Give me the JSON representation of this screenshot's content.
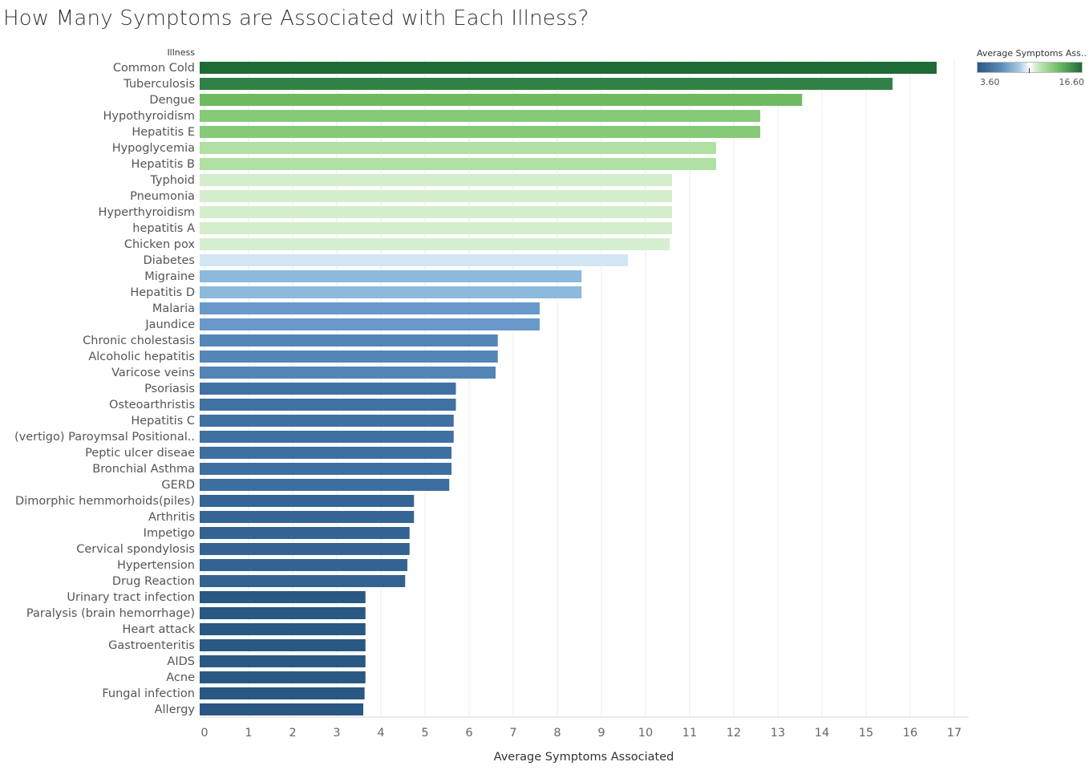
{
  "title": "How Many Symptoms are Associated with Each Illness?",
  "legend": {
    "title": "Average Symptoms Ass..",
    "min_label": "3.60",
    "max_label": "16.60",
    "min": 3.6,
    "max": 16.6
  },
  "colors": {
    "low": "#2a5783",
    "mid": "#ffffff",
    "high": "#1e6b35",
    "axis": "#d9d9d9",
    "text": "#555555"
  },
  "chart_data": {
    "type": "bar",
    "orientation": "horizontal",
    "title": "How Many Symptoms are Associated with Each Illness?",
    "category_header": "Illness",
    "xlabel": "Average Symptoms Associated",
    "xlim": [
      0,
      17
    ],
    "xticks": [
      0,
      1,
      2,
      3,
      4,
      5,
      6,
      7,
      8,
      9,
      10,
      11,
      12,
      13,
      14,
      15,
      16,
      17
    ],
    "grid": true,
    "categories": [
      "Common Cold",
      "Tuberculosis",
      "Dengue",
      "Hypothyroidism",
      "Hepatitis E",
      "Hypoglycemia",
      "Hepatitis B",
      "Typhoid",
      "Pneumonia",
      "Hyperthyroidism",
      "hepatitis A",
      "Chicken pox",
      "Diabetes",
      "Migraine",
      "Hepatitis D",
      "Malaria",
      "Jaundice",
      "Chronic cholestasis",
      "Alcoholic hepatitis",
      "Varicose veins",
      "Psoriasis",
      "Osteoarthristis",
      "Hepatitis C",
      "(vertigo) Paroymsal  Positional..",
      "Peptic ulcer diseae",
      "Bronchial Asthma",
      "GERD",
      "Dimorphic hemmorhoids(piles)",
      "Arthritis",
      "Impetigo",
      "Cervical spondylosis",
      "Hypertension",
      "Drug Reaction",
      "Urinary tract infection",
      "Paralysis (brain hemorrhage)",
      "Heart attack",
      "Gastroenteritis",
      "AIDS",
      "Acne",
      "Fungal infection",
      "Allergy"
    ],
    "values": [
      16.6,
      15.6,
      13.55,
      12.6,
      12.6,
      11.6,
      11.6,
      10.6,
      10.6,
      10.6,
      10.6,
      10.55,
      9.6,
      8.55,
      8.55,
      7.6,
      7.6,
      6.65,
      6.65,
      6.6,
      5.7,
      5.7,
      5.65,
      5.65,
      5.6,
      5.6,
      5.55,
      4.75,
      4.75,
      4.65,
      4.65,
      4.6,
      4.55,
      3.65,
      3.65,
      3.65,
      3.65,
      3.65,
      3.65,
      3.63,
      3.6
    ]
  }
}
